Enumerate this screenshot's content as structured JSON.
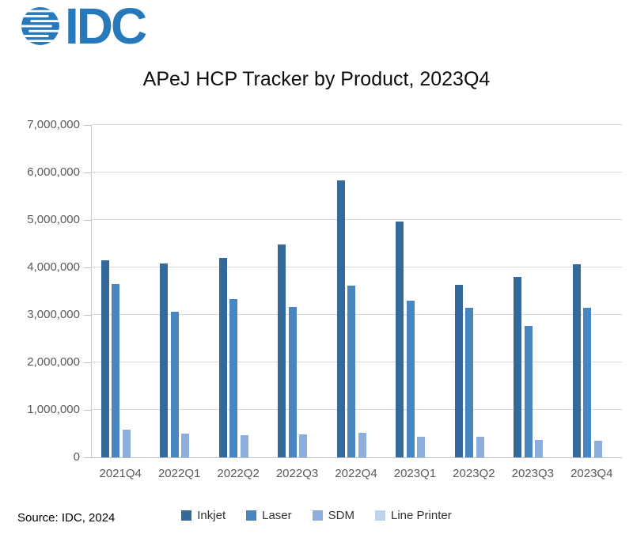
{
  "logo": {
    "text": "IDC",
    "color": "#2779BC"
  },
  "title": "APeJ HCP Tracker by Product, 2023Q4",
  "source": "Source: IDC, 2024",
  "chart_data": {
    "type": "bar",
    "title": "APeJ HCP Tracker by Product, 2023Q4",
    "categories": [
      "2021Q4",
      "2022Q1",
      "2022Q2",
      "2022Q3",
      "2022Q4",
      "2023Q1",
      "2023Q2",
      "2023Q3",
      "2023Q4"
    ],
    "series": [
      {
        "name": "Inkjet",
        "color": "#35689B",
        "values": [
          4150000,
          4080000,
          4200000,
          4480000,
          5840000,
          4960000,
          3630000,
          3800000,
          4060000
        ]
      },
      {
        "name": "Laser",
        "color": "#4886C2",
        "values": [
          3650000,
          3060000,
          3330000,
          3170000,
          3620000,
          3300000,
          3150000,
          2760000,
          3150000
        ]
      },
      {
        "name": "SDM",
        "color": "#8CAEDC",
        "values": [
          580000,
          500000,
          460000,
          490000,
          510000,
          440000,
          430000,
          360000,
          350000
        ]
      },
      {
        "name": "Line Printer",
        "color": "#BDD3EC",
        "values": [
          0,
          0,
          0,
          0,
          0,
          0,
          0,
          0,
          0
        ]
      }
    ],
    "ylim": [
      0,
      7000000
    ],
    "ytick_interval": 1000000,
    "ytick_labels": [
      "0",
      "1,000,000",
      "2,000,000",
      "3,000,000",
      "4,000,000",
      "5,000,000",
      "6,000,000",
      "7,000,000"
    ],
    "grid": true,
    "legend_position": "bottom",
    "colors": {
      "gridline": "#d9d9d9",
      "axis_text": "#595959",
      "legend_text": "#333333"
    }
  }
}
